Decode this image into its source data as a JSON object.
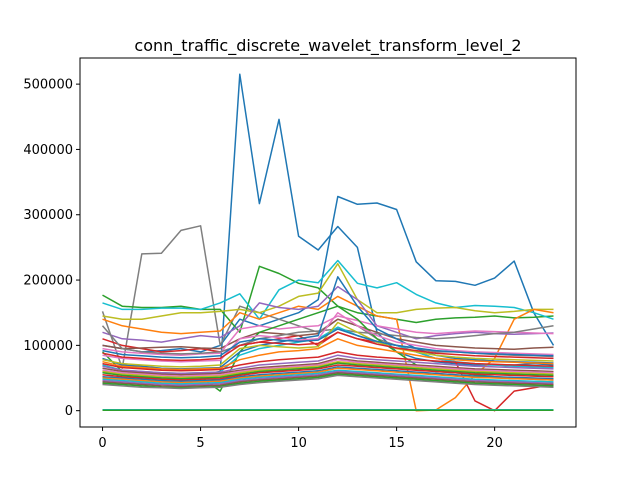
{
  "chart_data": {
    "type": "line",
    "title": "conn_traffic_discrete_wavelet_transform_level_2",
    "xlabel": "",
    "ylabel": "",
    "xlim": [
      -1.15,
      24.15
    ],
    "ylim": [
      -25000,
      540000
    ],
    "x_ticks": [
      0,
      5,
      10,
      15,
      20
    ],
    "y_ticks": [
      0,
      100000,
      200000,
      300000,
      400000,
      500000
    ],
    "x_tick_labels": [
      "0",
      "5",
      "10",
      "15",
      "20"
    ],
    "y_tick_labels": [
      "0",
      "100000",
      "200000",
      "300000",
      "400000",
      "500000"
    ],
    "grid": false,
    "legend": "none",
    "x": [
      0,
      1,
      2,
      3,
      4,
      5,
      6,
      7,
      8,
      9,
      10,
      11,
      12,
      13,
      14,
      15,
      16,
      17,
      18,
      19,
      20,
      21,
      22,
      23
    ],
    "series": [
      {
        "color": "#1f77b4",
        "values": [
          60000,
          55000,
          52000,
          50000,
          52000,
          55000,
          60000,
          515000,
          317000,
          446000,
          267000,
          246000,
          282000,
          250000,
          120000,
          90000,
          80000,
          75000,
          72000,
          70000,
          70000,
          70000,
          72000,
          70000
        ]
      },
      {
        "color": "#1f77b4",
        "values": [
          100000,
          95000,
          90000,
          92000,
          95000,
          90000,
          100000,
          140000,
          130000,
          140000,
          150000,
          170000,
          328000,
          316000,
          318000,
          308000,
          228000,
          199000,
          198000,
          192000,
          203000,
          229000,
          150000,
          100000
        ]
      },
      {
        "color": "#7f7f7f",
        "values": [
          152000,
          65000,
          240000,
          241000,
          276000,
          283000,
          100000,
          160000,
          150000,
          140000,
          130000,
          120000,
          140000,
          130000,
          110000,
          100000,
          95000,
          90000,
          90000,
          88000,
          86000,
          85000,
          84000,
          83000
        ]
      },
      {
        "color": "#2ca02c",
        "values": [
          177000,
          160000,
          158000,
          158000,
          160000,
          155000,
          155000,
          120000,
          221000,
          210000,
          195000,
          188000,
          160000,
          150000,
          145000,
          140000,
          135000,
          140000,
          142000,
          143000,
          145000,
          142000,
          143000,
          145000
        ]
      },
      {
        "color": "#17becf",
        "values": [
          165000,
          155000,
          155000,
          157000,
          157000,
          155000,
          165000,
          179000,
          140000,
          185000,
          200000,
          196000,
          230000,
          195000,
          188000,
          196000,
          178000,
          165000,
          158000,
          161000,
          160000,
          158000,
          150000,
          140000
        ]
      },
      {
        "color": "#bcbd22",
        "values": [
          145000,
          140000,
          140000,
          145000,
          150000,
          150000,
          152000,
          155000,
          150000,
          160000,
          175000,
          180000,
          225000,
          170000,
          150000,
          150000,
          155000,
          157000,
          158000,
          153000,
          150000,
          152000,
          155000,
          155000
        ]
      },
      {
        "color": "#ff7f0e",
        "values": [
          140000,
          130000,
          125000,
          120000,
          118000,
          120000,
          122000,
          150000,
          140000,
          150000,
          160000,
          155000,
          175000,
          160000,
          145000,
          140000,
          0,
          1000,
          20000,
          55000,
          80000,
          140000,
          155000,
          150000
        ]
      },
      {
        "color": "#d62728",
        "values": [
          110000,
          100000,
          95000,
          90000,
          92000,
          95000,
          90000,
          100000,
          105000,
          110000,
          115000,
          100000,
          120000,
          110000,
          105000,
          100000,
          90000,
          80000,
          75000,
          15000,
          0,
          30000,
          35000,
          40000
        ]
      },
      {
        "color": "#9467bd",
        "values": [
          120000,
          110000,
          108000,
          105000,
          110000,
          115000,
          112000,
          130000,
          165000,
          158000,
          155000,
          160000,
          190000,
          170000,
          130000,
          120000,
          110000,
          115000,
          118000,
          120000,
          118000,
          117000,
          118000,
          119000
        ]
      },
      {
        "color": "#8c564b",
        "values": [
          100000,
          95000,
          96000,
          97000,
          98000,
          96000,
          95000,
          110000,
          120000,
          118000,
          115000,
          118000,
          140000,
          130000,
          120000,
          110000,
          105000,
          100000,
          98000,
          96000,
          95000,
          94000,
          96000,
          97000
        ]
      },
      {
        "color": "#e377c2",
        "values": [
          95000,
          90000,
          88000,
          86000,
          85000,
          87000,
          88000,
          125000,
          130000,
          125000,
          128000,
          130000,
          145000,
          138000,
          130000,
          125000,
          120000,
          118000,
          120000,
          122000,
          121000,
          120000,
          119000,
          118000
        ]
      },
      {
        "color": "#2ca02c",
        "values": [
          90000,
          60000,
          58000,
          55000,
          50000,
          52000,
          30000,
          90000,
          120000,
          130000,
          140000,
          150000,
          160000,
          140000,
          110000,
          90000,
          70000,
          60000,
          58000,
          55000,
          52000,
          50000,
          48000,
          47000
        ]
      },
      {
        "color": "#7f7f7f",
        "values": [
          130000,
          95000,
          90000,
          88000,
          87000,
          88000,
          90000,
          100000,
          110000,
          115000,
          120000,
          122000,
          125000,
          120000,
          118000,
          115000,
          112000,
          110000,
          112000,
          115000,
          118000,
          120000,
          125000,
          130000
        ]
      },
      {
        "color": "#1f77b4",
        "values": [
          80000,
          70000,
          68000,
          65000,
          64000,
          65000,
          66000,
          90000,
          100000,
          105000,
          110000,
          115000,
          205000,
          160000,
          125000,
          110000,
          95000,
          85000,
          80000,
          78000,
          76000,
          75000,
          74000,
          73000
        ]
      },
      {
        "color": "#17becf",
        "values": [
          70000,
          62000,
          60000,
          58000,
          57000,
          58000,
          59000,
          85000,
          95000,
          100000,
          105000,
          110000,
          128000,
          115000,
          105000,
          100000,
          90000,
          80000,
          75000,
          72000,
          70000,
          68000,
          67000,
          66000
        ]
      },
      {
        "color": "#ff7f0e",
        "values": [
          75000,
          68000,
          66000,
          64000,
          63000,
          64000,
          65000,
          78000,
          85000,
          90000,
          92000,
          95000,
          110000,
          100000,
          95000,
          90000,
          85000,
          80000,
          78000,
          76000,
          75000,
          74000,
          73000,
          72000
        ]
      },
      {
        "color": "#d62728",
        "values": [
          72000,
          66000,
          64000,
          62000,
          61000,
          62000,
          63000,
          70000,
          75000,
          78000,
          80000,
          82000,
          90000,
          85000,
          82000,
          80000,
          78000,
          76000,
          74000,
          72000,
          71000,
          70000,
          69000,
          68000
        ]
      },
      {
        "color": "#9467bd",
        "values": [
          68000,
          62000,
          60000,
          58000,
          57000,
          58000,
          59000,
          65000,
          70000,
          72000,
          74000,
          76000,
          85000,
          80000,
          78000,
          76000,
          74000,
          72000,
          70000,
          68000,
          67000,
          66000,
          65000,
          64000
        ]
      },
      {
        "color": "#8c564b",
        "values": [
          65000,
          60000,
          58000,
          56000,
          55000,
          56000,
          57000,
          62000,
          66000,
          68000,
          70000,
          72000,
          80000,
          76000,
          74000,
          72000,
          70000,
          68000,
          66000,
          64000,
          63000,
          62000,
          61000,
          60000
        ]
      },
      {
        "color": "#e377c2",
        "values": [
          62000,
          58000,
          56000,
          54000,
          53000,
          54000,
          55000,
          60000,
          64000,
          66000,
          68000,
          70000,
          78000,
          74000,
          72000,
          70000,
          68000,
          66000,
          64000,
          62000,
          61000,
          60000,
          59000,
          58000
        ]
      },
      {
        "color": "#bcbd22",
        "values": [
          60000,
          56000,
          54000,
          52000,
          51000,
          52000,
          53000,
          58000,
          62000,
          64000,
          66000,
          68000,
          75000,
          72000,
          70000,
          68000,
          66000,
          64000,
          62000,
          60000,
          59000,
          58000,
          57000,
          56000
        ]
      },
      {
        "color": "#2ca02c",
        "values": [
          58000,
          54000,
          52000,
          50000,
          49000,
          50000,
          51000,
          56000,
          60000,
          62000,
          64000,
          66000,
          73000,
          70000,
          68000,
          66000,
          64000,
          62000,
          60000,
          58000,
          57000,
          56000,
          55000,
          54000
        ]
      },
      {
        "color": "#d62728",
        "values": [
          55000,
          52000,
          50000,
          48000,
          47000,
          48000,
          49000,
          54000,
          58000,
          60000,
          62000,
          64000,
          70000,
          68000,
          66000,
          64000,
          62000,
          60000,
          58000,
          56000,
          55000,
          54000,
          53000,
          52000
        ]
      },
      {
        "color": "#1f77b4",
        "values": [
          52000,
          50000,
          48000,
          46000,
          45000,
          46000,
          47000,
          52000,
          55000,
          57000,
          59000,
          61000,
          67000,
          65000,
          63000,
          61000,
          59000,
          57000,
          55000,
          53000,
          52000,
          51000,
          50000,
          49000
        ]
      },
      {
        "color": "#ff7f0e",
        "values": [
          50000,
          48000,
          46000,
          44000,
          43000,
          44000,
          45000,
          50000,
          53000,
          55000,
          57000,
          59000,
          65000,
          63000,
          61000,
          59000,
          57000,
          55000,
          53000,
          51000,
          50000,
          49000,
          48000,
          47000
        ]
      },
      {
        "color": "#17becf",
        "values": [
          48000,
          46000,
          44000,
          42000,
          41000,
          42000,
          43000,
          48000,
          51000,
          53000,
          55000,
          57000,
          62000,
          60000,
          58000,
          56000,
          54000,
          52000,
          50000,
          48000,
          47000,
          46000,
          45000,
          44000
        ]
      },
      {
        "color": "#9467bd",
        "values": [
          46000,
          44000,
          42000,
          40000,
          39000,
          40000,
          41000,
          46000,
          49000,
          51000,
          53000,
          55000,
          60000,
          58000,
          56000,
          54000,
          52000,
          50000,
          48000,
          46000,
          45000,
          44000,
          43000,
          42000
        ]
      },
      {
        "color": "#8c564b",
        "values": [
          44000,
          42000,
          40000,
          38000,
          37000,
          38000,
          39000,
          44000,
          47000,
          49000,
          51000,
          53000,
          58000,
          56000,
          54000,
          52000,
          50000,
          48000,
          46000,
          44000,
          43000,
          42000,
          41000,
          40000
        ]
      },
      {
        "color": "#2ca02c",
        "values": [
          42000,
          40000,
          38000,
          36000,
          35000,
          36000,
          37000,
          42000,
          45000,
          47000,
          49000,
          51000,
          56000,
          54000,
          52000,
          50000,
          48000,
          46000,
          44000,
          42000,
          41000,
          40000,
          39000,
          38000
        ]
      },
      {
        "color": "#7f7f7f",
        "values": [
          40000,
          38000,
          36000,
          35000,
          34000,
          35000,
          36000,
          40000,
          43000,
          45000,
          47000,
          49000,
          54000,
          52000,
          50000,
          48000,
          46000,
          44000,
          42000,
          40000,
          39000,
          38000,
          37000,
          36000
        ]
      },
      {
        "color": "#e377c2",
        "values": [
          85000,
          80000,
          78000,
          76000,
          75000,
          76000,
          77000,
          110000,
          115000,
          112000,
          108000,
          110000,
          150000,
          130000,
          115000,
          105000,
          100000,
          95000,
          92000,
          90000,
          89000,
          88000,
          87000,
          86000
        ]
      },
      {
        "color": "#bcbd22",
        "values": [
          78000,
          72000,
          70000,
          68000,
          67000,
          68000,
          70000,
          95000,
          100000,
          98000,
          96000,
          98000,
          135000,
          120000,
          105000,
          95000,
          90000,
          85000,
          82000,
          80000,
          79000,
          78000,
          77000,
          76000
        ]
      },
      {
        "color": "#d62728",
        "values": [
          88000,
          82000,
          80000,
          78000,
          77000,
          78000,
          80000,
          100000,
          105000,
          103000,
          101000,
          103000,
          120000,
          110000,
          102000,
          96000,
          92000,
          88000,
          86000,
          84000,
          83000,
          82000,
          81000,
          80000
        ]
      },
      {
        "color": "#1f77b4",
        "values": [
          92000,
          86000,
          84000,
          82000,
          81000,
          82000,
          84000,
          105000,
          110000,
          108000,
          106000,
          108000,
          125000,
          115000,
          106000,
          100000,
          96000,
          92000,
          90000,
          88000,
          87000,
          86000,
          85000,
          84000
        ]
      },
      {
        "color": "#17becf",
        "values": [
          1500,
          1500,
          1500,
          1500,
          1500,
          1500,
          1500,
          1500,
          1500,
          1500,
          1500,
          1500,
          1500,
          1500,
          1500,
          1500,
          1500,
          1500,
          1500,
          1500,
          1500,
          1500,
          1500,
          1500
        ]
      },
      {
        "color": "#2ca02c",
        "values": [
          500,
          500,
          500,
          500,
          500,
          500,
          500,
          500,
          500,
          500,
          500,
          500,
          500,
          500,
          500,
          500,
          500,
          500,
          500,
          500,
          500,
          500,
          500,
          500
        ]
      }
    ]
  }
}
